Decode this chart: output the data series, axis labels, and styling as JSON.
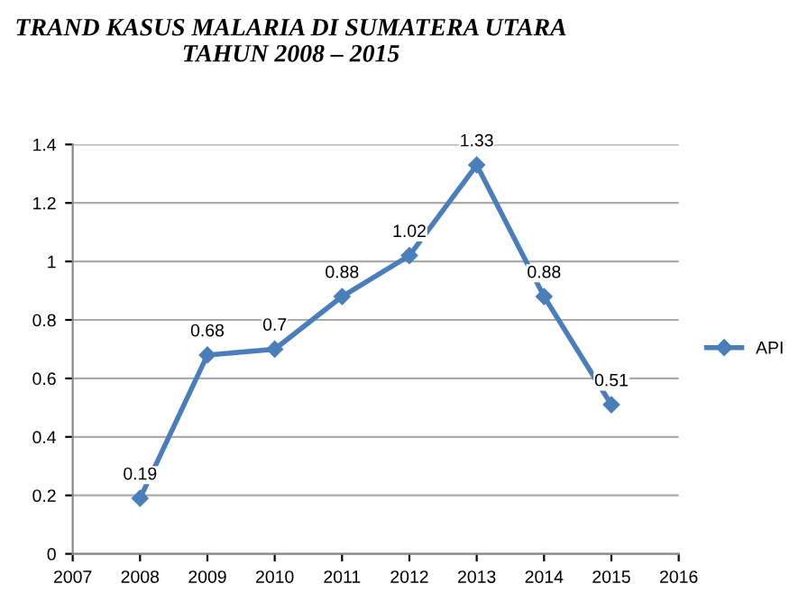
{
  "chart_data": {
    "type": "line",
    "title": "TRAND KASUS MALARIA DI SUMATERA UTARA\nTAHUN 2008 – 2015",
    "x": [
      2008,
      2009,
      2010,
      2011,
      2012,
      2013,
      2014,
      2015
    ],
    "series": [
      {
        "name": "API",
        "color": "#4a7ebb",
        "values": [
          0.19,
          0.68,
          0.7,
          0.88,
          1.02,
          1.33,
          0.88,
          0.51
        ]
      }
    ],
    "xlim": [
      2007,
      2016
    ],
    "xticks": [
      2007,
      2008,
      2009,
      2010,
      2011,
      2012,
      2013,
      2014,
      2015,
      2016
    ],
    "ylim": [
      0,
      1.4
    ],
    "yticks": [
      0,
      0.2,
      0.4,
      0.6,
      0.8,
      1,
      1.2,
      1.4
    ],
    "grid": "y",
    "legend": "right",
    "marker": "diamond",
    "line_style": "solid",
    "data_labels": true
  }
}
